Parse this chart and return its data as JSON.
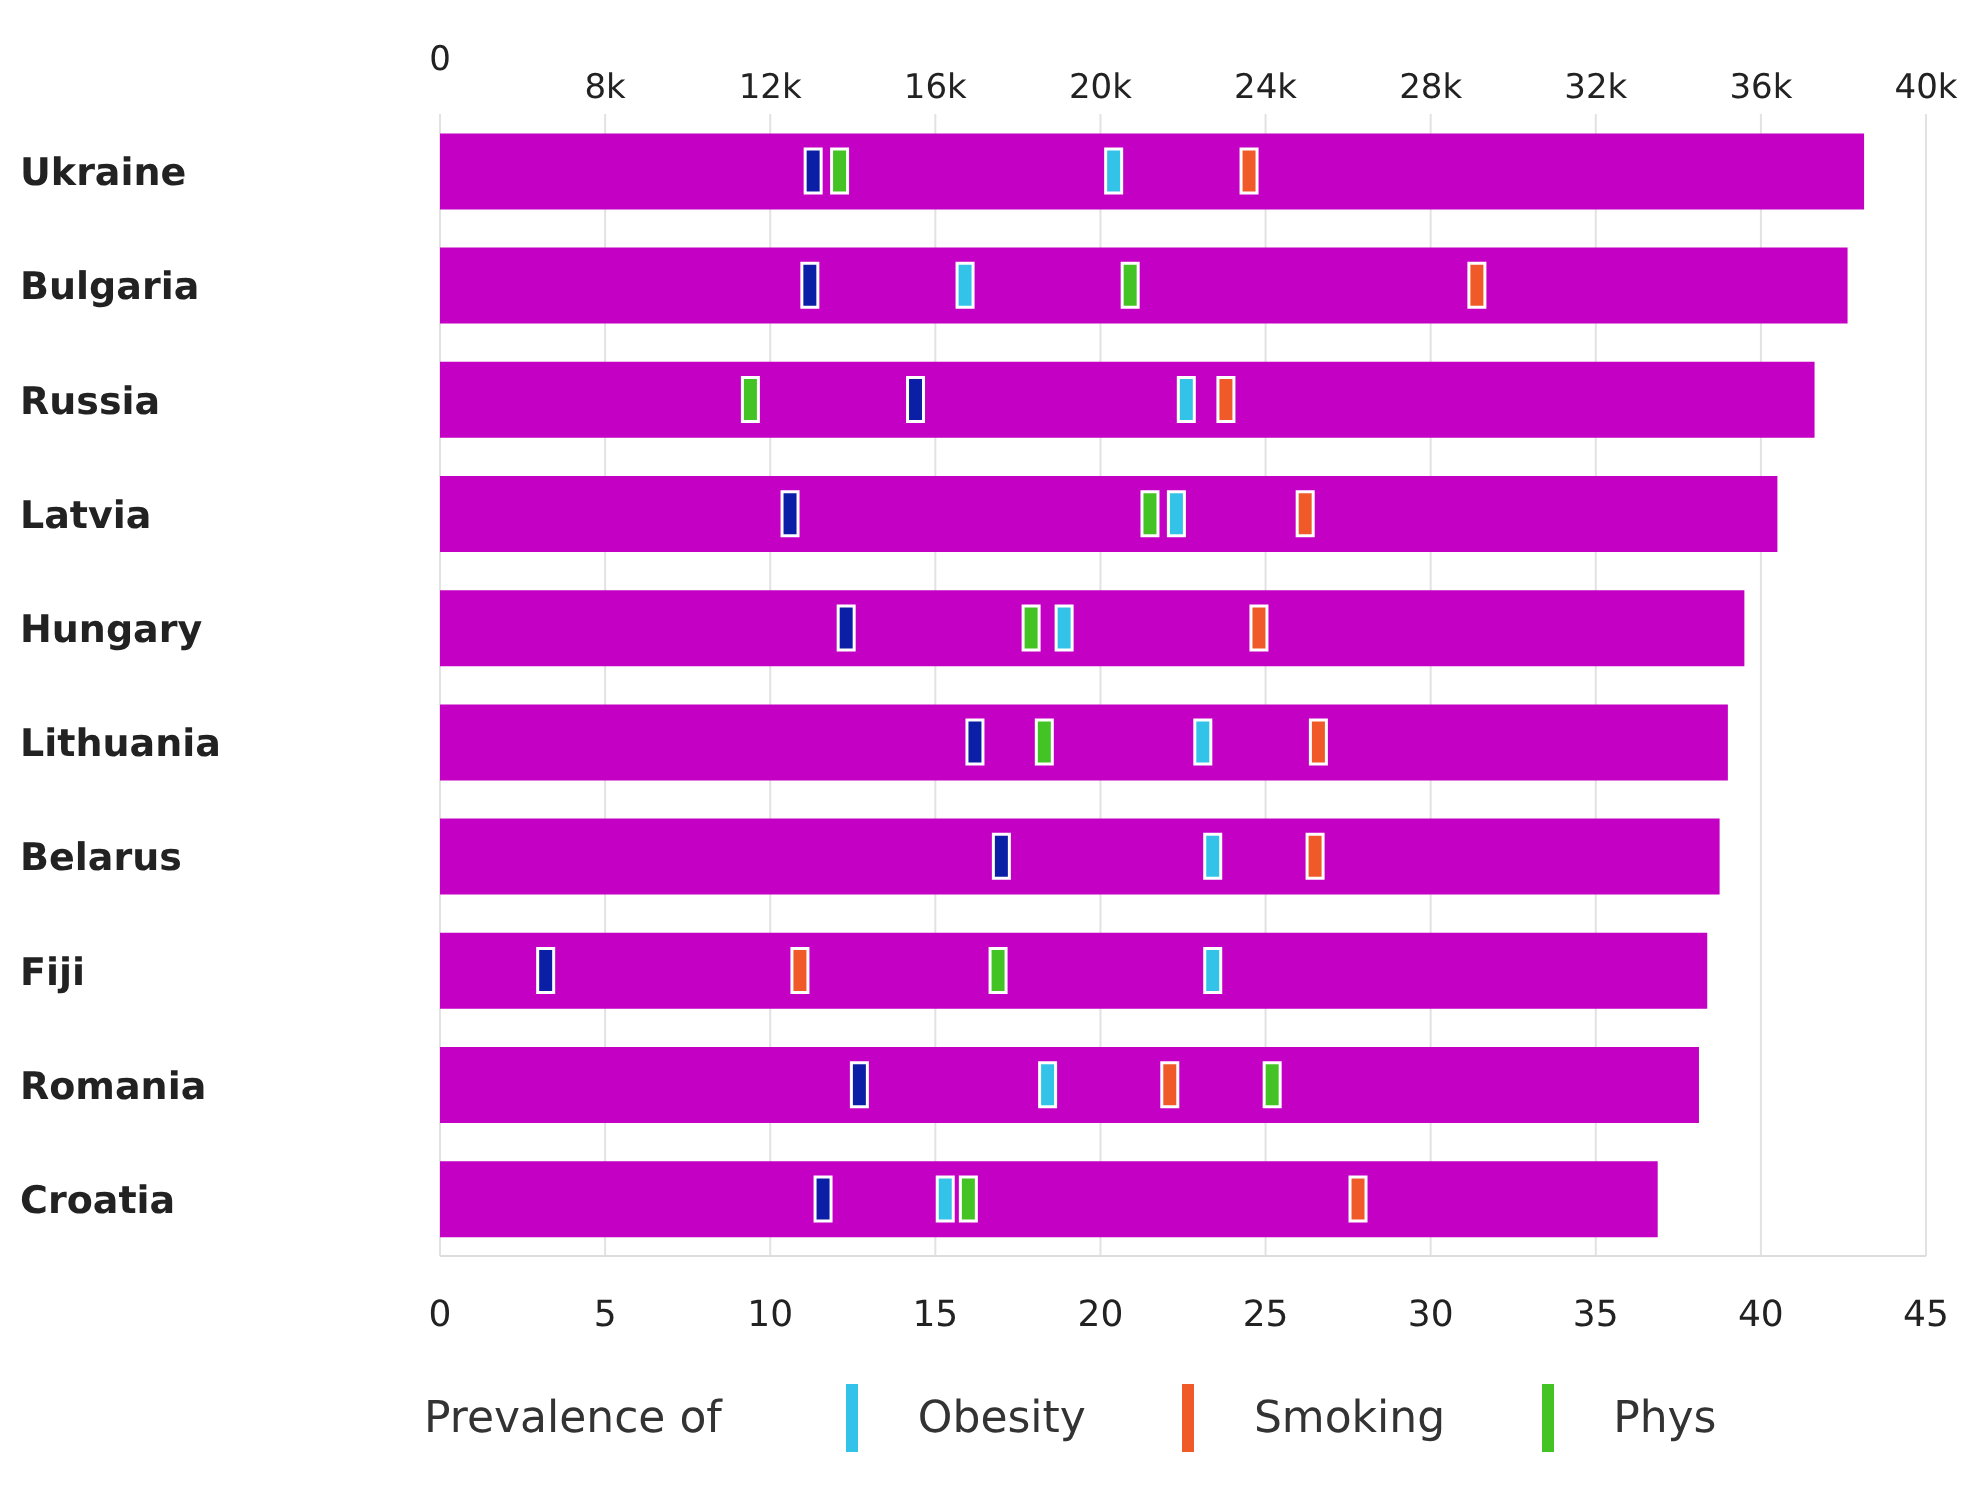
{
  "chart_data": {
    "type": "bar",
    "orientation": "horizontal",
    "categories": [
      "Ukraine",
      "Bulgaria",
      "Russia",
      "Latvia",
      "Hungary",
      "Lithuania",
      "Belarus",
      "Fiji",
      "Romania",
      "Croatia"
    ],
    "series": [
      {
        "axis": "x2",
        "color": "#c300c3",
        "values": [
          38500,
          38100,
          37300,
          36400,
          35600,
          35200,
          35000,
          34700,
          34500,
          33500
        ]
      },
      {
        "type": "scatter",
        "color": "#0b1fa6",
        "values": [
          11.3,
          11.2,
          14.4,
          10.6,
          12.3,
          16.2,
          17.0,
          3.2,
          12.7,
          11.6
        ]
      },
      {
        "type": "scatter",
        "name": "Obesity",
        "color": "#33c3e8",
        "values": [
          20.4,
          15.9,
          22.6,
          22.3,
          18.9,
          23.1,
          23.4,
          23.4,
          18.4,
          15.3
        ]
      },
      {
        "type": "scatter",
        "name": "Smoking",
        "color": "#f05a28",
        "values": [
          24.5,
          31.4,
          23.8,
          26.2,
          24.8,
          26.6,
          26.5,
          10.9,
          22.1,
          27.8
        ]
      },
      {
        "type": "scatter",
        "name": "Phys",
        "color": "#44c424",
        "values": [
          12.1,
          20.9,
          9.4,
          21.5,
          17.9,
          18.3,
          null,
          16.9,
          25.2,
          16.0
        ]
      }
    ],
    "xlim": [
      0,
      45
    ],
    "xticks": [
      0,
      5,
      10,
      15,
      20,
      25,
      30,
      35,
      40,
      45
    ],
    "x2lim": [
      4000,
      40000
    ],
    "x2ticks": [
      {
        "value": 8000,
        "label": "8k"
      },
      {
        "value": 12000,
        "label": "12k"
      },
      {
        "value": 16000,
        "label": "16k"
      },
      {
        "value": 20000,
        "label": "20k"
      },
      {
        "value": 24000,
        "label": "24k"
      },
      {
        "value": 28000,
        "label": "28k"
      },
      {
        "value": 32000,
        "label": "32k"
      },
      {
        "value": 36000,
        "label": "36k"
      },
      {
        "value": 40000,
        "label": "40k"
      }
    ],
    "annotations": [
      "0"
    ],
    "grid": "x",
    "legend": "bottom",
    "legend_title": "Prevalence of"
  }
}
